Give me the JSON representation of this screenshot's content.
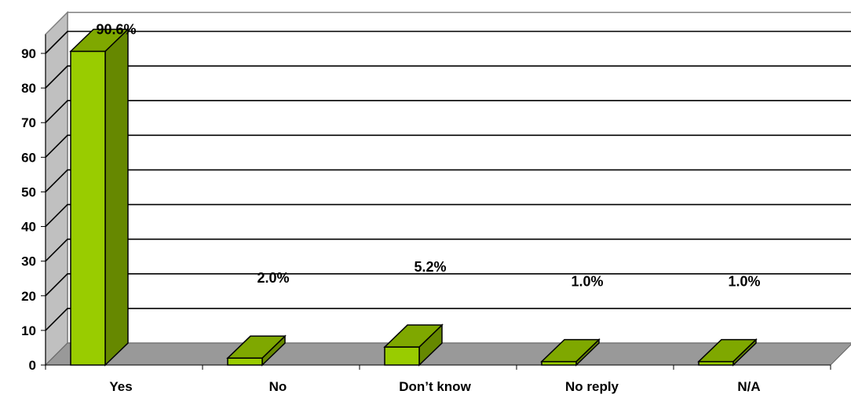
{
  "chart_data": {
    "type": "bar",
    "categories": [
      "Yes",
      "No",
      "Don’t know",
      "No reply",
      "N/A"
    ],
    "values": [
      90.6,
      2.0,
      5.2,
      1.0,
      1.0
    ],
    "data_labels": [
      "90.6%",
      "2.0%",
      "5.2%",
      "1.0%",
      "1.0%"
    ],
    "yticks": [
      "0",
      "10",
      "20",
      "30",
      "40",
      "50",
      "60",
      "70",
      "80",
      "90"
    ],
    "ylim": [
      0,
      90
    ],
    "grid": true,
    "legend": "none",
    "colors": {
      "bar_front": "#99CC00",
      "bar_top": "#7FA800",
      "bar_side": "#668800",
      "floor": "#999999",
      "wall": "#ffffff",
      "gridline": "#000000"
    }
  }
}
